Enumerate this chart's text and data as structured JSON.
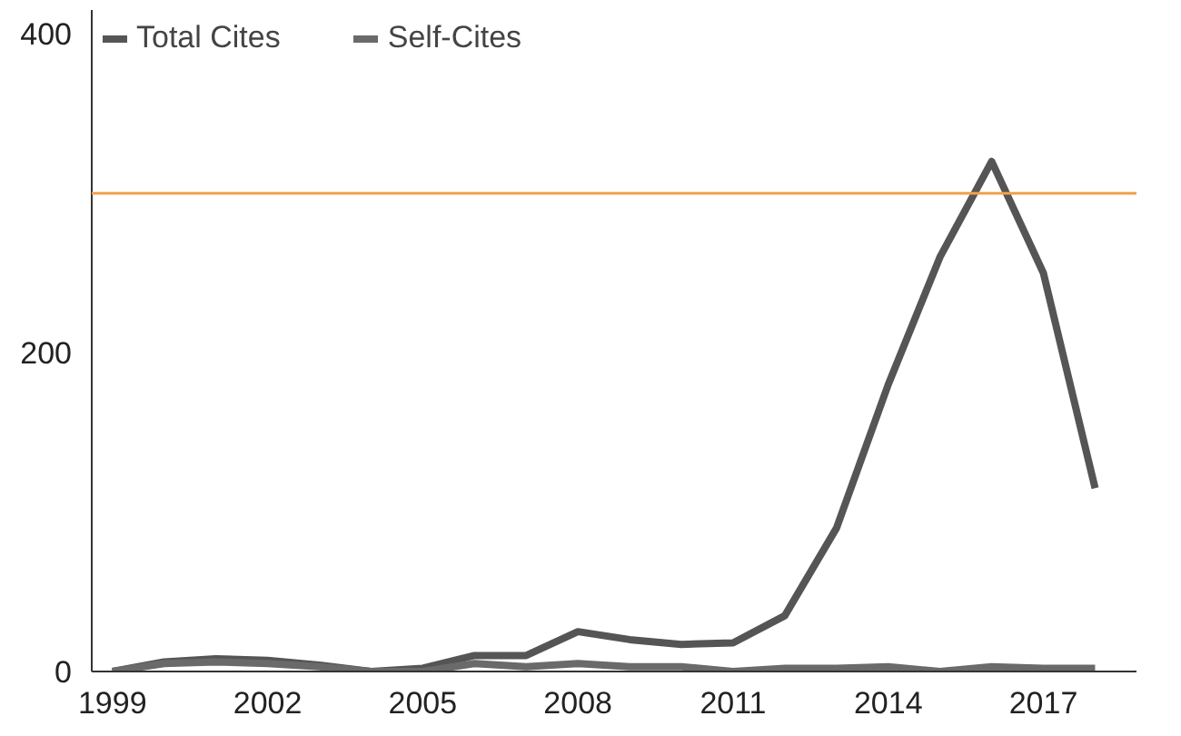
{
  "chart_data": {
    "type": "line",
    "x": [
      1999,
      2000,
      2001,
      2002,
      2003,
      2004,
      2005,
      2006,
      2007,
      2008,
      2009,
      2010,
      2011,
      2012,
      2013,
      2014,
      2015,
      2016,
      2017,
      2018
    ],
    "series": [
      {
        "name": "Total Cites",
        "color": "#555555",
        "values": [
          0,
          6,
          8,
          7,
          4,
          0,
          2,
          10,
          10,
          25,
          20,
          17,
          18,
          35,
          90,
          180,
          260,
          320,
          250,
          115
        ]
      },
      {
        "name": "Self-Cites",
        "color": "#6a6a6a",
        "values": [
          0,
          5,
          6,
          5,
          3,
          0,
          0,
          5,
          3,
          5,
          3,
          3,
          0,
          2,
          2,
          3,
          0,
          3,
          2,
          2
        ]
      }
    ],
    "xlim": [
      1998.6,
      2018.8
    ],
    "ylim": [
      0,
      415
    ],
    "xticks": [
      1999,
      2002,
      2005,
      2008,
      2011,
      2014,
      2017
    ],
    "yticks": [
      0,
      200,
      400
    ],
    "ref_lines": [
      {
        "axis": "y",
        "value": 300,
        "color": "#f0a050"
      }
    ],
    "grid": false,
    "legend": "top left",
    "line_style": "solid",
    "marker": "none"
  }
}
